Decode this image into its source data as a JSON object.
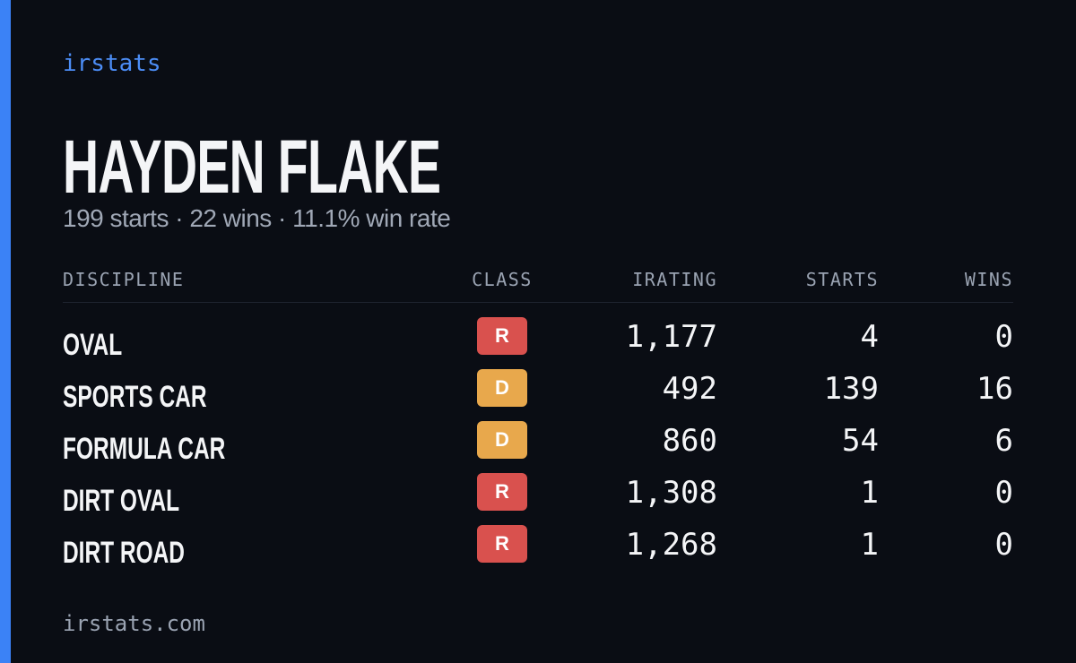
{
  "brand": "irstats",
  "name": "HAYDEN FLAKE",
  "summary": "199 starts · 22 wins · 11.1% win rate",
  "table": {
    "headers": [
      "DISCIPLINE",
      "CLASS",
      "IRATING",
      "STARTS",
      "WINS"
    ],
    "rows": [
      {
        "discipline": "OVAL",
        "class": "R",
        "class_color": "#d9514e",
        "irating": "1,177",
        "starts": 4,
        "wins": 0
      },
      {
        "discipline": "SPORTS CAR",
        "class": "D",
        "class_color": "#e8a84c",
        "irating": "492",
        "starts": 139,
        "wins": 16
      },
      {
        "discipline": "FORMULA CAR",
        "class": "D",
        "class_color": "#e8a84c",
        "irating": "860",
        "starts": 54,
        "wins": 6
      },
      {
        "discipline": "DIRT OVAL",
        "class": "R",
        "class_color": "#d9514e",
        "irating": "1,308",
        "starts": 1,
        "wins": 0
      },
      {
        "discipline": "DIRT ROAD",
        "class": "R",
        "class_color": "#d9514e",
        "irating": "1,268",
        "starts": 1,
        "wins": 0
      }
    ]
  },
  "footer": "irstats.com"
}
